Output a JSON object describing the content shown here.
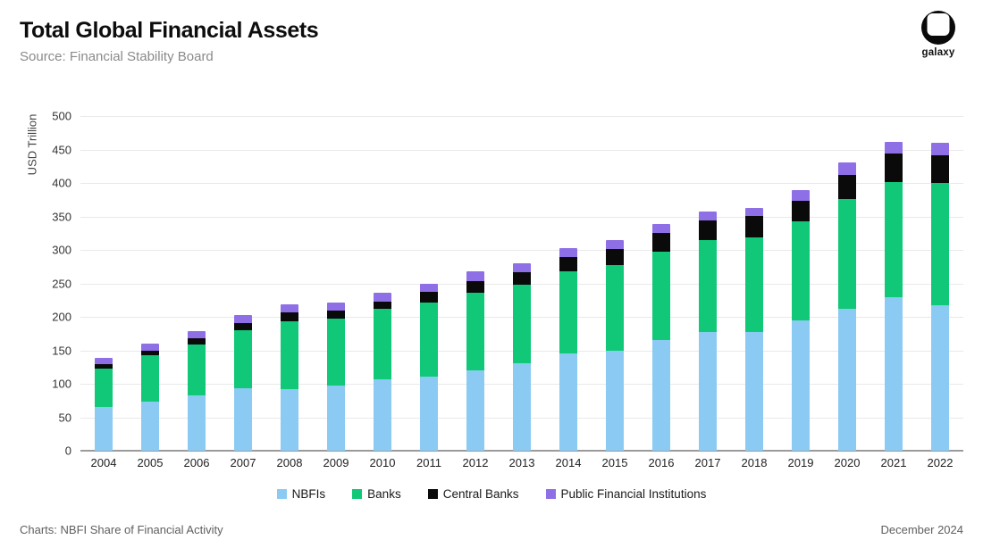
{
  "header": {
    "title": "Total Global Financial Assets",
    "subtitle": "Source: Financial Stability Board",
    "logo_text": "galaxy"
  },
  "chart_data": {
    "type": "bar",
    "stacked": true,
    "title": "Total Global Financial Assets",
    "source": "Financial Stability Board",
    "ylabel": "USD Trillion",
    "ylim": [
      0,
      500
    ],
    "ytick_interval": 50,
    "grid": "horizontal",
    "legend_position": "bottom",
    "categories": [
      "2004",
      "2005",
      "2006",
      "2007",
      "2008",
      "2009",
      "2010",
      "2011",
      "2012",
      "2013",
      "2014",
      "2015",
      "2016",
      "2017",
      "2018",
      "2019",
      "2020",
      "2021",
      "2022"
    ],
    "series": [
      {
        "name": "NBFIs",
        "color": "#8BCBF3",
        "values": [
          65,
          74,
          83,
          94,
          92,
          97,
          107,
          111,
          120,
          131,
          145,
          150,
          165,
          178,
          178,
          195,
          212,
          230,
          218
        ]
      },
      {
        "name": "Banks",
        "color": "#10C877",
        "values": [
          58,
          69,
          76,
          86,
          102,
          100,
          105,
          111,
          116,
          117,
          123,
          127,
          133,
          137,
          141,
          148,
          164,
          171,
          182
        ]
      },
      {
        "name": "Central Banks",
        "color": "#0A0A0A",
        "values": [
          6,
          6,
          9,
          11,
          13,
          13,
          11,
          16,
          18,
          19,
          21,
          25,
          27,
          29,
          32,
          30,
          36,
          43,
          41
        ]
      },
      {
        "name": "Public Financial Institutions",
        "color": "#8E6FE6",
        "values": [
          10,
          11,
          11,
          12,
          12,
          12,
          13,
          12,
          14,
          13,
          14,
          13,
          14,
          14,
          12,
          16,
          19,
          18,
          19
        ]
      }
    ],
    "totals": [
      139,
      160,
      179,
      203,
      219,
      222,
      236,
      250,
      268,
      280,
      303,
      315,
      339,
      358,
      363,
      389,
      431,
      462,
      460
    ]
  },
  "footer": {
    "left": "Charts: NBFI Share of Financial Activity",
    "right": "December 2024"
  }
}
